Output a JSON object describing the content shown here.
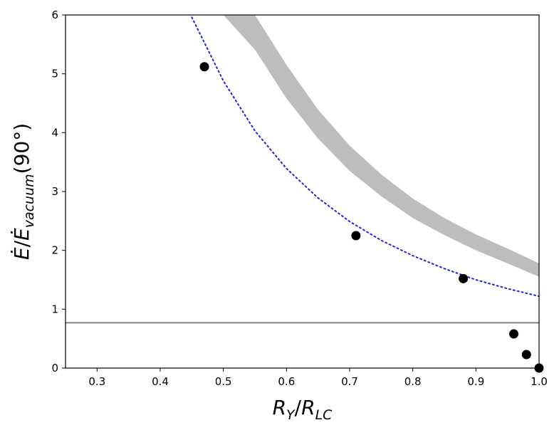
{
  "chart_data": {
    "type": "scatter",
    "xlabel": "R_Y/R_LC",
    "ylabel": "Ė/Ė_vacuum(90°)",
    "xlim": [
      0.25,
      1.0
    ],
    "ylim": [
      0,
      6
    ],
    "xticks": [
      "0.3",
      "0.4",
      "0.5",
      "0.6",
      "0.7",
      "0.8",
      "0.9",
      "1.0"
    ],
    "yticks": [
      "0",
      "1",
      "2",
      "3",
      "4",
      "5",
      "6"
    ],
    "grid": false,
    "series": [
      {
        "kind": "points",
        "color": "#000000",
        "x": [
          0.47,
          0.71,
          0.88,
          0.96,
          0.98,
          1.0
        ],
        "y": [
          5.12,
          2.25,
          1.52,
          0.58,
          0.23,
          0.0
        ]
      },
      {
        "kind": "dotted-line",
        "color": "#1f1fe6",
        "x": [
          0.45,
          0.5,
          0.55,
          0.6,
          0.65,
          0.7,
          0.75,
          0.8,
          0.85,
          0.9,
          0.95,
          1.0
        ],
        "y": [
          5.96,
          4.88,
          4.03,
          3.39,
          2.89,
          2.49,
          2.17,
          1.91,
          1.69,
          1.5,
          1.35,
          1.22
        ]
      },
      {
        "kind": "band",
        "color": "#bdbdbd",
        "x": [
          0.5,
          0.55,
          0.6,
          0.65,
          0.7,
          0.75,
          0.8,
          0.85,
          0.9,
          0.95,
          1.0
        ],
        "y_lower": [
          6.0,
          5.41,
          4.58,
          3.9,
          3.35,
          2.92,
          2.55,
          2.26,
          2.0,
          1.78,
          1.55
        ],
        "y_upper": [
          6.0,
          6.0,
          5.15,
          4.39,
          3.78,
          3.29,
          2.88,
          2.55,
          2.27,
          2.03,
          1.78
        ]
      },
      {
        "kind": "hline",
        "color": "#808080",
        "y": 0.77
      }
    ]
  }
}
